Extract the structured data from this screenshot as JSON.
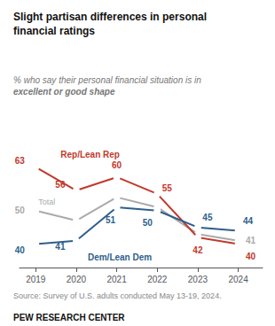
{
  "chart_data": {
    "type": "line",
    "title": "Slight partisan differences in personal\nfinancial ratings",
    "subtitle": [
      "% who say their personal financial situation is in",
      "excellent or good shape"
    ],
    "x": [
      2019,
      2020,
      2021,
      2022,
      2023,
      2024
    ],
    "series": [
      {
        "name": "Rep/Lean Rep",
        "color": "#c0392b",
        "values": [
          63,
          56,
          60,
          55,
          42,
          40
        ]
      },
      {
        "name": "Dem/Lean Dem",
        "color": "#2e5f8a",
        "values": [
          40,
          41,
          51,
          50,
          45,
          44
        ]
      },
      {
        "name": "Total",
        "color": "#aaaaaa",
        "values": [
          50,
          47,
          54,
          51,
          43,
          41
        ],
        "value_labels": [
          "50",
          null,
          null,
          null,
          null,
          "41"
        ]
      }
    ],
    "xlim": [
      2018.6,
      2024.6
    ],
    "xticks": [
      2019,
      2020,
      2021,
      2022,
      2023,
      2024
    ],
    "ylim": [
      33,
      74
    ],
    "grid": false,
    "data_labels": true,
    "tick_labels": "x",
    "marker": "circle",
    "source": "Source: Survey of U.S. adults conducted May 13-19, 2024.",
    "footer": "PEW RESEARCH CENTER"
  }
}
